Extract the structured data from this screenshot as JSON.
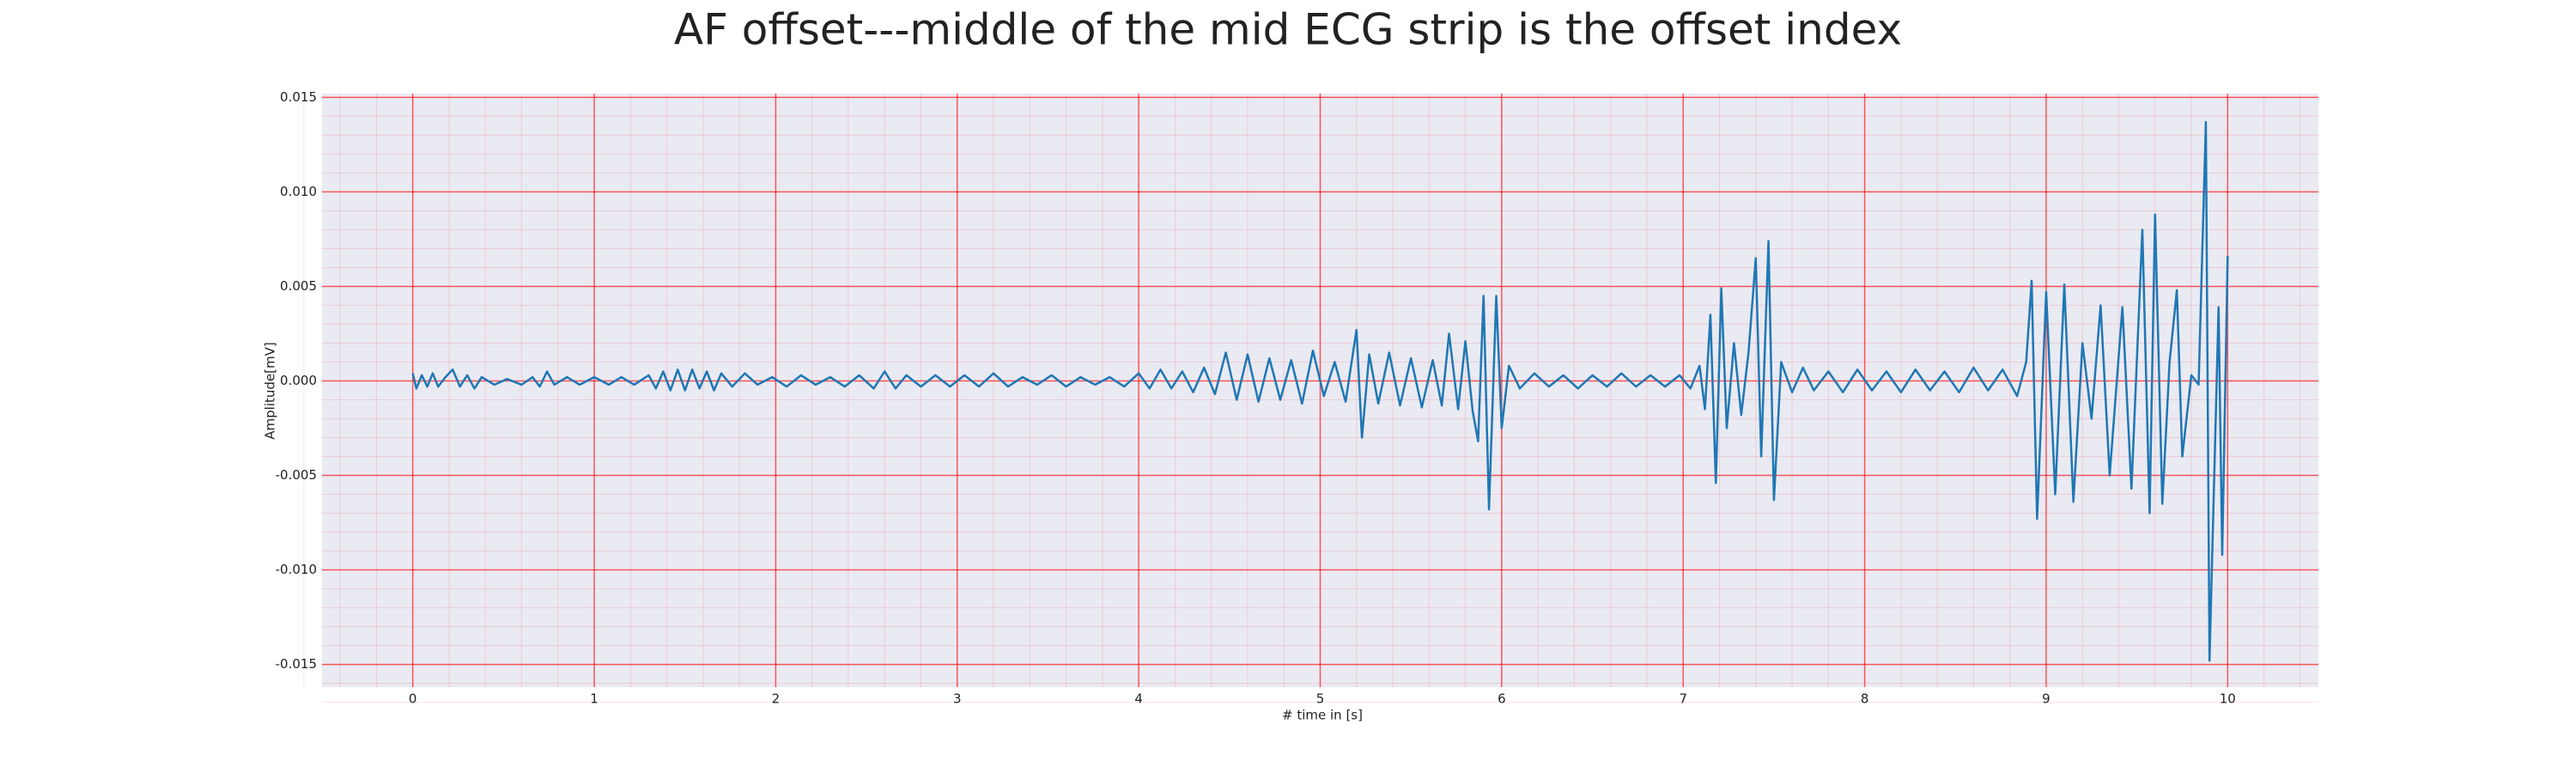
{
  "chart_data": {
    "type": "line",
    "title": "AF offset---middle of the mid ECG strip is the offset index",
    "xlabel": "# time in [s]",
    "ylabel": "Amplitude[mV]",
    "color": "#1f77b4",
    "grid": true,
    "grid_color": "#ff0000",
    "minor_grid": true,
    "background": "#eaeaf2",
    "xlim": [
      -0.5,
      10.5
    ],
    "ylim": [
      -0.0162,
      0.0152
    ],
    "xticks": [
      0,
      1,
      2,
      3,
      4,
      5,
      6,
      7,
      8,
      9,
      10
    ],
    "yticks": [
      -0.015,
      {
        "value": -0.01,
        "label": "-0.010"
      },
      -0.005,
      {
        "value": 0,
        "label": "0.000"
      },
      0.005,
      {
        "value": 0.01,
        "label": "0.010"
      },
      0.015
    ],
    "x": [
      0.0,
      0.02,
      0.05,
      0.08,
      0.11,
      0.14,
      0.18,
      0.22,
      0.26,
      0.3,
      0.34,
      0.38,
      0.45,
      0.52,
      0.6,
      0.66,
      0.7,
      0.74,
      0.78,
      0.85,
      0.92,
      1.0,
      1.08,
      1.15,
      1.22,
      1.3,
      1.34,
      1.38,
      1.42,
      1.46,
      1.5,
      1.54,
      1.58,
      1.62,
      1.66,
      1.7,
      1.76,
      1.83,
      1.9,
      1.98,
      2.06,
      2.14,
      2.22,
      2.3,
      2.38,
      2.46,
      2.54,
      2.6,
      2.66,
      2.72,
      2.8,
      2.88,
      2.96,
      3.04,
      3.12,
      3.2,
      3.28,
      3.36,
      3.44,
      3.52,
      3.6,
      3.68,
      3.76,
      3.84,
      3.92,
      4.0,
      4.06,
      4.12,
      4.18,
      4.24,
      4.3,
      4.36,
      4.42,
      4.48,
      4.54,
      4.6,
      4.66,
      4.72,
      4.78,
      4.84,
      4.9,
      4.96,
      5.02,
      5.08,
      5.14,
      5.2,
      5.23,
      5.27,
      5.32,
      5.38,
      5.44,
      5.5,
      5.56,
      5.62,
      5.67,
      5.71,
      5.76,
      5.8,
      5.84,
      5.87,
      5.9,
      5.93,
      5.97,
      6.0,
      6.04,
      6.1,
      6.18,
      6.26,
      6.34,
      6.42,
      6.5,
      6.58,
      6.66,
      6.74,
      6.82,
      6.9,
      6.98,
      7.04,
      7.09,
      7.12,
      7.15,
      7.18,
      7.21,
      7.24,
      7.28,
      7.32,
      7.36,
      7.4,
      7.43,
      7.47,
      7.5,
      7.54,
      7.6,
      7.66,
      7.72,
      7.8,
      7.88,
      7.96,
      8.04,
      8.12,
      8.2,
      8.28,
      8.36,
      8.44,
      8.52,
      8.6,
      8.68,
      8.76,
      8.84,
      8.89,
      8.92,
      8.95,
      9.0,
      9.05,
      9.1,
      9.15,
      9.2,
      9.25,
      9.3,
      9.35,
      9.42,
      9.47,
      9.53,
      9.57,
      9.6,
      9.64,
      9.68,
      9.72,
      9.75,
      9.8,
      9.84,
      9.88,
      9.9,
      9.95,
      9.97,
      10.0
    ],
    "values": [
      0.0004,
      -0.0004,
      0.0003,
      -0.0003,
      0.0004,
      -0.0003,
      0.0002,
      0.0006,
      -0.0003,
      0.0003,
      -0.0004,
      0.0002,
      -0.0002,
      0.0001,
      -0.0002,
      0.0002,
      -0.0003,
      0.0005,
      -0.0002,
      0.0002,
      -0.0002,
      0.0002,
      -0.0002,
      0.0002,
      -0.0002,
      0.0003,
      -0.0004,
      0.0005,
      -0.0005,
      0.0006,
      -0.0005,
      0.0006,
      -0.0004,
      0.0005,
      -0.0005,
      0.0004,
      -0.0003,
      0.0004,
      -0.0002,
      0.0002,
      -0.0003,
      0.0003,
      -0.0002,
      0.0002,
      -0.0003,
      0.0003,
      -0.0004,
      0.0005,
      -0.0004,
      0.0003,
      -0.0003,
      0.0003,
      -0.0003,
      0.0003,
      -0.0003,
      0.0004,
      -0.0003,
      0.0002,
      -0.0002,
      0.0003,
      -0.0003,
      0.0002,
      -0.0002,
      0.0002,
      -0.0003,
      0.0004,
      -0.0004,
      0.0006,
      -0.0004,
      0.0005,
      -0.0006,
      0.0007,
      -0.0007,
      0.0015,
      -0.001,
      0.0014,
      -0.0011,
      0.0012,
      -0.001,
      0.0011,
      -0.0012,
      0.0016,
      -0.0008,
      0.001,
      -0.0011,
      0.0027,
      -0.003,
      0.0014,
      -0.0012,
      0.0015,
      -0.0013,
      0.0012,
      -0.0014,
      0.0011,
      -0.0013,
      0.0025,
      -0.0015,
      0.0021,
      -0.0016,
      -0.0032,
      0.0045,
      -0.0068,
      0.0045,
      -0.0025,
      0.0008,
      -0.0004,
      0.0004,
      -0.0003,
      0.0003,
      -0.0004,
      0.0003,
      -0.0003,
      0.0004,
      -0.0003,
      0.0003,
      -0.0003,
      0.0003,
      -0.0004,
      0.0008,
      -0.0015,
      0.0035,
      -0.0054,
      0.0049,
      -0.0025,
      0.002,
      -0.0018,
      0.0015,
      0.0065,
      -0.004,
      0.0074,
      -0.0063,
      0.001,
      -0.0006,
      0.0007,
      -0.0005,
      0.0005,
      -0.0006,
      0.0006,
      -0.0005,
      0.0005,
      -0.0006,
      0.0006,
      -0.0005,
      0.0005,
      -0.0006,
      0.0007,
      -0.0005,
      0.0006,
      -0.0008,
      0.001,
      0.0053,
      -0.0073,
      0.0047,
      -0.006,
      0.0051,
      -0.0064,
      0.002,
      -0.002,
      0.004,
      -0.005,
      0.0039,
      -0.0057,
      0.008,
      -0.007,
      0.0088,
      -0.0065,
      0.001,
      0.0048,
      -0.004,
      0.0003,
      -0.0002,
      0.0137,
      -0.0148,
      0.0039,
      -0.0092,
      0.0066
    ]
  }
}
